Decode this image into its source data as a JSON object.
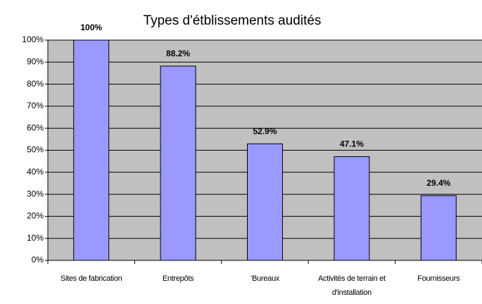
{
  "chart_data": {
    "type": "bar",
    "title": "Types d'étblissements audités",
    "categories": [
      "Sites de fabrication",
      "Entrepôts",
      "‘Bureaux",
      "Activités de terrain et d'installation",
      "Fournisseurs"
    ],
    "values": [
      100,
      88.2,
      52.9,
      47.1,
      29.4
    ],
    "value_labels": [
      "100%",
      "88.2%",
      "52.9%",
      "47.1%",
      "29.4%"
    ],
    "color": "#9999ff",
    "ylim": [
      0,
      100
    ],
    "yticks": [
      {
        "value": 0,
        "label": "0%"
      },
      {
        "value": 10,
        "label": "10%"
      },
      {
        "value": 20,
        "label": "20%"
      },
      {
        "value": 30,
        "label": "30%"
      },
      {
        "value": 40,
        "label": "40%"
      },
      {
        "value": 50,
        "label": "50%"
      },
      {
        "value": 60,
        "label": "60%"
      },
      {
        "value": 70,
        "label": "70%"
      },
      {
        "value": 80,
        "label": "80%"
      },
      {
        "value": 90,
        "label": "90%"
      },
      {
        "value": 100,
        "label": "100%"
      }
    ],
    "grid": true
  }
}
